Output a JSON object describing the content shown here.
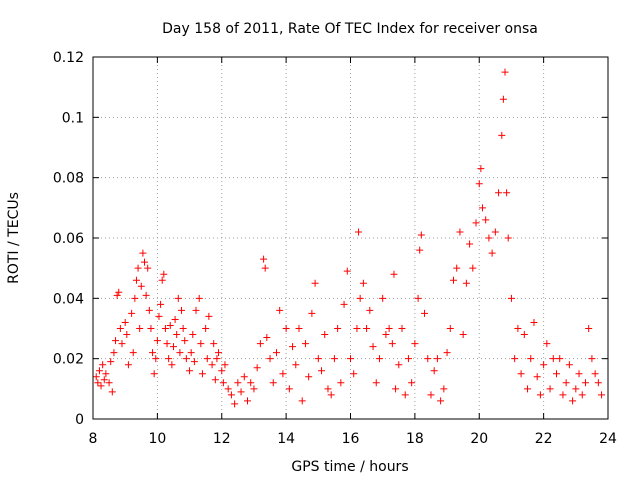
{
  "chart_data": {
    "type": "scatter",
    "title": "Day 158 of 2011, Rate Of TEC Index for receiver onsa",
    "xlabel": "GPS time / hours",
    "ylabel": "ROTI / TECUs",
    "xlim": [
      8,
      24
    ],
    "ylim": [
      0,
      0.12
    ],
    "x_ticks": [
      8,
      10,
      12,
      14,
      16,
      18,
      20,
      22,
      24
    ],
    "y_ticks": [
      0,
      0.02,
      0.04,
      0.06,
      0.08,
      0.1,
      0.12
    ],
    "x_tick_labels": [
      "8",
      "10",
      "12",
      "14",
      "16",
      "18",
      "20",
      "22",
      "24"
    ],
    "y_tick_labels": [
      "0",
      "0.02",
      "0.04",
      "0.06",
      "0.08",
      "0.1",
      "0.12"
    ],
    "grid": true,
    "marker": "+",
    "color": "#ff0000",
    "series": [
      {
        "name": "ROTI",
        "points": [
          [
            8.1,
            0.014
          ],
          [
            8.15,
            0.012
          ],
          [
            8.2,
            0.016
          ],
          [
            8.25,
            0.011
          ],
          [
            8.3,
            0.018
          ],
          [
            8.35,
            0.013
          ],
          [
            8.4,
            0.015
          ],
          [
            8.5,
            0.012
          ],
          [
            8.55,
            0.019
          ],
          [
            8.6,
            0.009
          ],
          [
            8.65,
            0.022
          ],
          [
            8.7,
            0.026
          ],
          [
            8.75,
            0.041
          ],
          [
            8.8,
            0.042
          ],
          [
            8.85,
            0.03
          ],
          [
            8.9,
            0.025
          ],
          [
            9.0,
            0.032
          ],
          [
            9.05,
            0.028
          ],
          [
            9.1,
            0.018
          ],
          [
            9.2,
            0.035
          ],
          [
            9.25,
            0.022
          ],
          [
            9.3,
            0.04
          ],
          [
            9.35,
            0.046
          ],
          [
            9.4,
            0.05
          ],
          [
            9.45,
            0.03
          ],
          [
            9.5,
            0.044
          ],
          [
            9.55,
            0.055
          ],
          [
            9.6,
            0.052
          ],
          [
            9.65,
            0.041
          ],
          [
            9.7,
            0.05
          ],
          [
            9.75,
            0.036
          ],
          [
            9.8,
            0.03
          ],
          [
            9.85,
            0.022
          ],
          [
            9.9,
            0.015
          ],
          [
            9.95,
            0.02
          ],
          [
            10.0,
            0.026
          ],
          [
            10.05,
            0.034
          ],
          [
            10.1,
            0.038
          ],
          [
            10.15,
            0.046
          ],
          [
            10.2,
            0.048
          ],
          [
            10.25,
            0.03
          ],
          [
            10.3,
            0.025
          ],
          [
            10.35,
            0.02
          ],
          [
            10.4,
            0.031
          ],
          [
            10.45,
            0.018
          ],
          [
            10.5,
            0.024
          ],
          [
            10.55,
            0.033
          ],
          [
            10.6,
            0.028
          ],
          [
            10.65,
            0.04
          ],
          [
            10.7,
            0.022
          ],
          [
            10.75,
            0.036
          ],
          [
            10.8,
            0.03
          ],
          [
            10.85,
            0.026
          ],
          [
            10.9,
            0.02
          ],
          [
            11.0,
            0.016
          ],
          [
            11.05,
            0.022
          ],
          [
            11.1,
            0.028
          ],
          [
            11.15,
            0.019
          ],
          [
            11.2,
            0.036
          ],
          [
            11.3,
            0.04
          ],
          [
            11.35,
            0.025
          ],
          [
            11.4,
            0.015
          ],
          [
            11.5,
            0.03
          ],
          [
            11.55,
            0.02
          ],
          [
            11.6,
            0.034
          ],
          [
            11.7,
            0.018
          ],
          [
            11.75,
            0.025
          ],
          [
            11.8,
            0.013
          ],
          [
            11.85,
            0.02
          ],
          [
            11.9,
            0.022
          ],
          [
            12.0,
            0.016
          ],
          [
            12.05,
            0.012
          ],
          [
            12.1,
            0.018
          ],
          [
            12.2,
            0.01
          ],
          [
            12.3,
            0.008
          ],
          [
            12.4,
            0.005
          ],
          [
            12.5,
            0.012
          ],
          [
            12.6,
            0.009
          ],
          [
            12.7,
            0.014
          ],
          [
            12.8,
            0.006
          ],
          [
            12.9,
            0.012
          ],
          [
            13.0,
            0.01
          ],
          [
            13.1,
            0.017
          ],
          [
            13.2,
            0.025
          ],
          [
            13.3,
            0.053
          ],
          [
            13.35,
            0.05
          ],
          [
            13.4,
            0.027
          ],
          [
            13.5,
            0.02
          ],
          [
            13.6,
            0.012
          ],
          [
            13.7,
            0.022
          ],
          [
            13.8,
            0.036
          ],
          [
            13.9,
            0.015
          ],
          [
            14.0,
            0.03
          ],
          [
            14.1,
            0.01
          ],
          [
            14.2,
            0.024
          ],
          [
            14.3,
            0.018
          ],
          [
            14.4,
            0.03
          ],
          [
            14.5,
            0.006
          ],
          [
            14.6,
            0.025
          ],
          [
            14.7,
            0.014
          ],
          [
            14.8,
            0.035
          ],
          [
            14.9,
            0.045
          ],
          [
            15.0,
            0.02
          ],
          [
            15.1,
            0.016
          ],
          [
            15.2,
            0.028
          ],
          [
            15.3,
            0.01
          ],
          [
            15.4,
            0.008
          ],
          [
            15.5,
            0.02
          ],
          [
            15.6,
            0.03
          ],
          [
            15.7,
            0.012
          ],
          [
            15.8,
            0.038
          ],
          [
            15.9,
            0.049
          ],
          [
            16.0,
            0.02
          ],
          [
            16.1,
            0.015
          ],
          [
            16.2,
            0.03
          ],
          [
            16.25,
            0.062
          ],
          [
            16.3,
            0.04
          ],
          [
            16.4,
            0.045
          ],
          [
            16.5,
            0.03
          ],
          [
            16.6,
            0.036
          ],
          [
            16.7,
            0.024
          ],
          [
            16.8,
            0.012
          ],
          [
            16.9,
            0.02
          ],
          [
            17.0,
            0.04
          ],
          [
            17.1,
            0.028
          ],
          [
            17.2,
            0.03
          ],
          [
            17.3,
            0.025
          ],
          [
            17.35,
            0.048
          ],
          [
            17.4,
            0.01
          ],
          [
            17.5,
            0.018
          ],
          [
            17.6,
            0.03
          ],
          [
            17.7,
            0.008
          ],
          [
            17.8,
            0.02
          ],
          [
            17.9,
            0.012
          ],
          [
            18.0,
            0.025
          ],
          [
            18.1,
            0.04
          ],
          [
            18.15,
            0.056
          ],
          [
            18.2,
            0.061
          ],
          [
            18.3,
            0.035
          ],
          [
            18.4,
            0.02
          ],
          [
            18.5,
            0.008
          ],
          [
            18.6,
            0.016
          ],
          [
            18.7,
            0.02
          ],
          [
            18.8,
            0.006
          ],
          [
            18.9,
            0.01
          ],
          [
            19.0,
            0.022
          ],
          [
            19.1,
            0.03
          ],
          [
            19.2,
            0.046
          ],
          [
            19.3,
            0.05
          ],
          [
            19.4,
            0.062
          ],
          [
            19.5,
            0.028
          ],
          [
            19.6,
            0.045
          ],
          [
            19.7,
            0.058
          ],
          [
            19.8,
            0.05
          ],
          [
            19.9,
            0.065
          ],
          [
            20.0,
            0.078
          ],
          [
            20.05,
            0.083
          ],
          [
            20.1,
            0.07
          ],
          [
            20.2,
            0.066
          ],
          [
            20.3,
            0.06
          ],
          [
            20.4,
            0.055
          ],
          [
            20.5,
            0.062
          ],
          [
            20.6,
            0.075
          ],
          [
            20.7,
            0.094
          ],
          [
            20.75,
            0.106
          ],
          [
            20.8,
            0.115
          ],
          [
            20.85,
            0.075
          ],
          [
            20.9,
            0.06
          ],
          [
            21.0,
            0.04
          ],
          [
            21.1,
            0.02
          ],
          [
            21.2,
            0.03
          ],
          [
            21.3,
            0.015
          ],
          [
            21.4,
            0.028
          ],
          [
            21.5,
            0.01
          ],
          [
            21.6,
            0.02
          ],
          [
            21.7,
            0.032
          ],
          [
            21.8,
            0.014
          ],
          [
            21.9,
            0.008
          ],
          [
            22.0,
            0.018
          ],
          [
            22.1,
            0.025
          ],
          [
            22.2,
            0.01
          ],
          [
            22.3,
            0.02
          ],
          [
            22.4,
            0.015
          ],
          [
            22.5,
            0.02
          ],
          [
            22.6,
            0.008
          ],
          [
            22.7,
            0.012
          ],
          [
            22.8,
            0.018
          ],
          [
            22.9,
            0.006
          ],
          [
            23.0,
            0.01
          ],
          [
            23.1,
            0.015
          ],
          [
            23.2,
            0.008
          ],
          [
            23.3,
            0.012
          ],
          [
            23.4,
            0.03
          ],
          [
            23.5,
            0.02
          ],
          [
            23.6,
            0.015
          ],
          [
            23.7,
            0.012
          ],
          [
            23.8,
            0.008
          ]
        ]
      }
    ]
  }
}
